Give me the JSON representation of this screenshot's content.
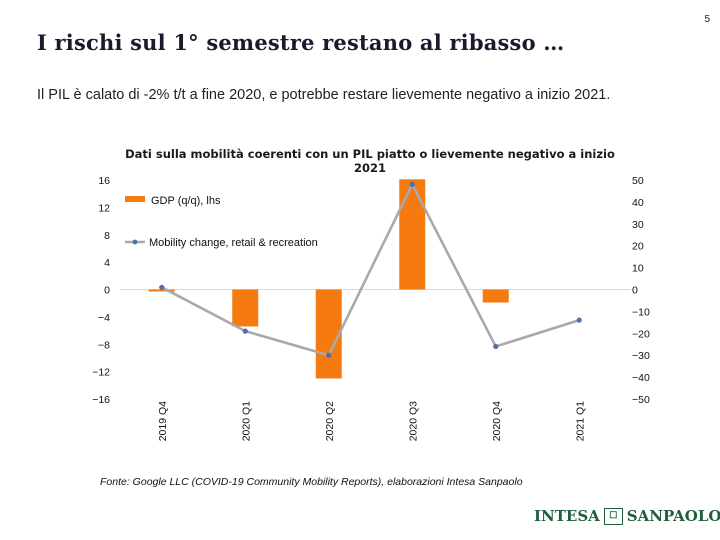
{
  "page_number": "5",
  "title": "I rischi sul 1° semestre restano al ribasso …",
  "subtitle": "Il PIL è calato di -2% t/t a fine 2020, e potrebbe restare lievemente negativo a inizio 2021.",
  "source": "Fonte: Google LLC (COVID-19 Community Mobility Reports), elaborazioni Intesa Sanpaolo",
  "logo": {
    "left": "INTESA",
    "right": "SANPAOLO"
  },
  "colors": {
    "bar": "#f57a10",
    "line": "#a9a9a9",
    "marker": "#4f6fa8"
  },
  "chart_data": {
    "type": "bar+line",
    "title": "Dati sulla mobilità coerenti con un PIL piatto o lievemente negativo a inizio 2021",
    "categories": [
      "2019 Q4",
      "2020 Q1",
      "2020 Q2",
      "2020 Q3",
      "2020 Q4",
      "2021 Q1"
    ],
    "series": [
      {
        "name": "GDP (q/q), lhs",
        "type": "bar",
        "axis": "left",
        "values": [
          -0.3,
          -5.4,
          -13.0,
          16.1,
          -1.9,
          null
        ]
      },
      {
        "name": "Mobility change, retail & recreation",
        "type": "line",
        "axis": "right",
        "values": [
          1,
          -19,
          -30,
          48,
          -26,
          -14
        ]
      }
    ],
    "left_axis": {
      "ylim": [
        -16,
        16
      ],
      "ticks": [
        16,
        12,
        8,
        4,
        0,
        -4,
        -8,
        -12,
        -16
      ],
      "tick_labels": [
        "16",
        "12",
        "8",
        "4",
        "0",
        "−4",
        "−8",
        "−12",
        "−16"
      ]
    },
    "right_axis": {
      "ylim": [
        -50,
        50
      ],
      "ticks": [
        50,
        40,
        30,
        20,
        10,
        0,
        -10,
        -20,
        -30,
        -40,
        -50
      ],
      "tick_labels": [
        "50",
        "40",
        "30",
        "20",
        "10",
        "0",
        "−10",
        "−20",
        "−30",
        "−40",
        "−50"
      ]
    },
    "legend_position": "top-left",
    "grid": false
  }
}
